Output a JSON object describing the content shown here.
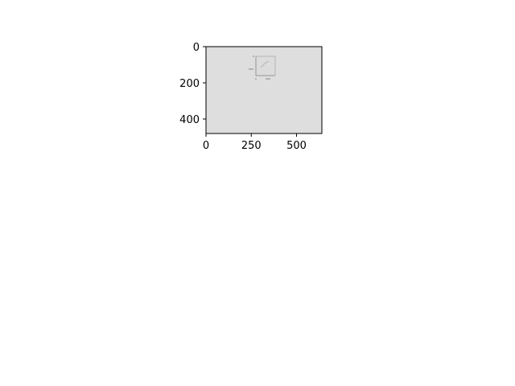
{
  "chart_data": {
    "type": "image",
    "title": "",
    "xlabel": "",
    "ylabel": "",
    "image_extent": {
      "width": 640,
      "height": 480
    },
    "xlim": [
      0,
      640
    ],
    "ylim": [
      480,
      0
    ],
    "xticks": [
      0,
      250,
      500
    ],
    "yticks": [
      0,
      200,
      400
    ],
    "xtick_labels": [
      "0",
      "250",
      "500"
    ],
    "ytick_labels": [
      "0",
      "200",
      "400"
    ],
    "grid": false,
    "background_color": "#dedede",
    "axes_color": "#000000",
    "nested_thumbnail": {
      "xtick_labels": [
        "0",
        "500"
      ],
      "ytick_labels": [
        "0",
        "500"
      ]
    }
  }
}
